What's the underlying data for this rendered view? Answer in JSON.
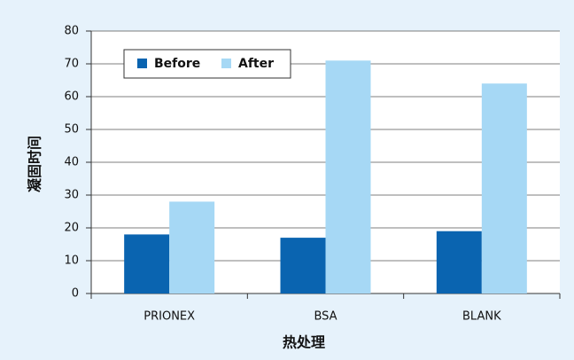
{
  "chart_data": {
    "type": "bar",
    "categories": [
      "PRIONEX",
      "BSA",
      "BLANK"
    ],
    "series": [
      {
        "name": "Before",
        "color": "#0a64b0",
        "values": [
          18,
          17,
          19
        ]
      },
      {
        "name": "After",
        "color": "#a6d8f5",
        "values": [
          28,
          71,
          64
        ]
      }
    ],
    "xlabel": "热处理",
    "ylabel": "凝固时间",
    "ylim": [
      0,
      80
    ],
    "yticks": [
      0,
      10,
      20,
      30,
      40,
      50,
      60,
      70,
      80
    ],
    "grid": true,
    "legend": "top-left"
  }
}
